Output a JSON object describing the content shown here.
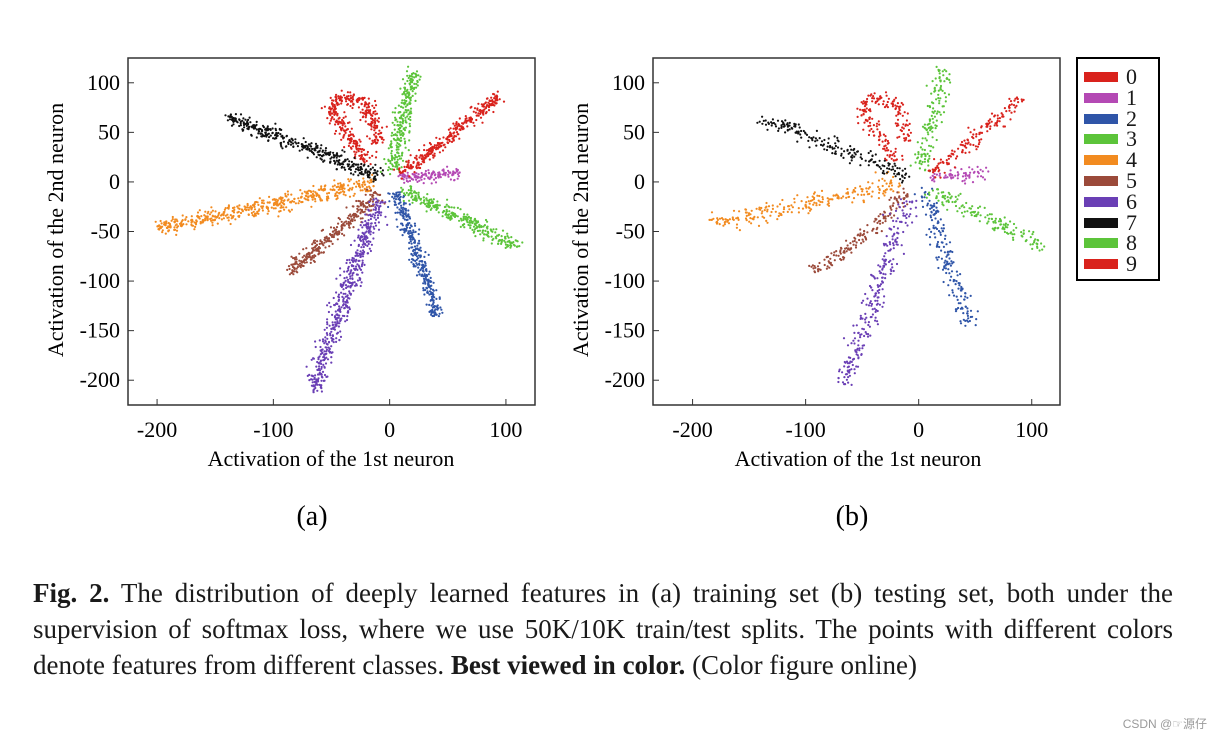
{
  "caption": {
    "fig_label": "Fig. 2.",
    "text_1": " The distribution of deeply learned features in (a) training set (b) testing set, both under the supervision of softmax loss, where we use 50K/10K train/test splits. The points with different colors denote features from different classes. ",
    "bold_text": "Best viewed in color.",
    "text_2": " (Color figure online)"
  },
  "watermark": "CSDN @☞源仔",
  "legend": [
    {
      "label": "0",
      "color": "#d9221c"
    },
    {
      "label": "1",
      "color": "#b449b4"
    },
    {
      "label": "2",
      "color": "#2f55a8"
    },
    {
      "label": "3",
      "color": "#5cc43a"
    },
    {
      "label": "4",
      "color": "#f28b20"
    },
    {
      "label": "5",
      "color": "#9b4a3a"
    },
    {
      "label": "6",
      "color": "#6a3fb5"
    },
    {
      "label": "7",
      "color": "#111111"
    },
    {
      "label": "8",
      "color": "#5cc43a"
    },
    {
      "label": "9",
      "color": "#d9221c"
    }
  ],
  "chart_data": [
    {
      "type": "scatter",
      "panel_label": "(a)",
      "xlabel": "Activation of the 1st neuron",
      "ylabel": "Activation of the 2nd neuron",
      "xlim": [
        -225,
        125
      ],
      "ylim": [
        -225,
        125
      ],
      "xticks": [
        -200,
        -100,
        0,
        100
      ],
      "yticks": [
        100,
        50,
        0,
        -50,
        -100,
        -150,
        -200
      ],
      "series": [
        {
          "name": "0",
          "color": "#d9221c",
          "points": [
            [
              -20,
              20
            ],
            [
              -35,
              45
            ],
            [
              -50,
              70
            ],
            [
              -45,
              85
            ],
            [
              -20,
              80
            ],
            [
              -10,
              40
            ]
          ],
          "center": [
            -35,
            60
          ]
        },
        {
          "name": "1",
          "color": "#b449b4",
          "points": [
            [
              10,
              5
            ],
            [
              30,
              7
            ],
            [
              50,
              8
            ],
            [
              60,
              8
            ]
          ],
          "center": [
            35,
            7
          ]
        },
        {
          "name": "2",
          "color": "#2f55a8",
          "points": [
            [
              5,
              -10
            ],
            [
              15,
              -40
            ],
            [
              25,
              -80
            ],
            [
              35,
              -110
            ],
            [
              40,
              -135
            ]
          ],
          "center": [
            25,
            -75
          ]
        },
        {
          "name": "3",
          "color": "#5cc43a",
          "points": [
            [
              3,
              10
            ],
            [
              8,
              45
            ],
            [
              15,
              80
            ],
            [
              22,
              115
            ]
          ],
          "center": [
            12,
            60
          ]
        },
        {
          "name": "4",
          "color": "#f28b20",
          "points": [
            [
              -15,
              -2
            ],
            [
              -60,
              -12
            ],
            [
              -110,
              -25
            ],
            [
              -160,
              -38
            ],
            [
              -200,
              -45
            ]
          ],
          "center": [
            -100,
            -22
          ]
        },
        {
          "name": "5",
          "color": "#9b4a3a",
          "points": [
            [
              -10,
              -10
            ],
            [
              -30,
              -35
            ],
            [
              -55,
              -60
            ],
            [
              -75,
              -80
            ],
            [
              -90,
              -92
            ]
          ],
          "center": [
            -50,
            -52
          ]
        },
        {
          "name": "6",
          "color": "#6a3fb5",
          "points": [
            [
              -10,
              -20
            ],
            [
              -25,
              -70
            ],
            [
              -40,
              -120
            ],
            [
              -55,
              -170
            ],
            [
              -65,
              -210
            ]
          ],
          "center": [
            -38,
            -115
          ]
        },
        {
          "name": "7",
          "color": "#111111",
          "points": [
            [
              -10,
              5
            ],
            [
              -40,
              20
            ],
            [
              -80,
              38
            ],
            [
              -115,
              55
            ],
            [
              -140,
              65
            ]
          ],
          "center": [
            -75,
            35
          ]
        },
        {
          "name": "8",
          "color": "#5cc43a",
          "points": [
            [
              10,
              -8
            ],
            [
              40,
              -25
            ],
            [
              70,
              -42
            ],
            [
              100,
              -60
            ],
            [
              110,
              -65
            ]
          ],
          "center": [
            60,
            -35
          ]
        },
        {
          "name": "9",
          "color": "#d9221c",
          "points": [
            [
              10,
              8
            ],
            [
              35,
              30
            ],
            [
              60,
              55
            ],
            [
              85,
              78
            ],
            [
              95,
              88
            ]
          ],
          "center": [
            50,
            45
          ]
        }
      ]
    },
    {
      "type": "scatter",
      "panel_label": "(b)",
      "xlabel": "Activation of the 1st neuron",
      "ylabel": "Activation of the 2nd neuron",
      "xlim": [
        -235,
        125
      ],
      "ylim": [
        -225,
        125
      ],
      "xticks": [
        -200,
        -100,
        0,
        100
      ],
      "yticks": [
        100,
        50,
        0,
        -50,
        -100,
        -150,
        -200
      ],
      "series": [
        {
          "name": "0",
          "color": "#d9221c",
          "points": [
            [
              -20,
              20
            ],
            [
              -35,
              45
            ],
            [
              -50,
              70
            ],
            [
              -45,
              85
            ],
            [
              -20,
              80
            ],
            [
              -10,
              40
            ]
          ],
          "center": [
            -35,
            60
          ]
        },
        {
          "name": "1",
          "color": "#b449b4",
          "points": [
            [
              10,
              5
            ],
            [
              30,
              7
            ],
            [
              50,
              8
            ],
            [
              60,
              8
            ]
          ],
          "center": [
            35,
            7
          ]
        },
        {
          "name": "2",
          "color": "#2f55a8",
          "points": [
            [
              5,
              -10
            ],
            [
              15,
              -40
            ],
            [
              25,
              -80
            ],
            [
              35,
              -110
            ],
            [
              45,
              -145
            ]
          ],
          "center": [
            25,
            -75
          ]
        },
        {
          "name": "3",
          "color": "#5cc43a",
          "points": [
            [
              3,
              10
            ],
            [
              8,
              45
            ],
            [
              15,
              80
            ],
            [
              22,
              115
            ]
          ],
          "center": [
            12,
            60
          ]
        },
        {
          "name": "4",
          "color": "#f28b20",
          "points": [
            [
              -15,
              -2
            ],
            [
              -60,
              -12
            ],
            [
              -110,
              -25
            ],
            [
              -160,
              -38
            ],
            [
              -185,
              -42
            ]
          ],
          "center": [
            -95,
            -22
          ]
        },
        {
          "name": "5",
          "color": "#9b4a3a",
          "points": [
            [
              -10,
              -10
            ],
            [
              -30,
              -35
            ],
            [
              -55,
              -60
            ],
            [
              -80,
              -80
            ],
            [
              -95,
              -92
            ]
          ],
          "center": [
            -50,
            -52
          ]
        },
        {
          "name": "6",
          "color": "#6a3fb5",
          "points": [
            [
              -10,
              -20
            ],
            [
              -25,
              -70
            ],
            [
              -40,
              -120
            ],
            [
              -55,
              -170
            ],
            [
              -70,
              -205
            ]
          ],
          "center": [
            -38,
            -115
          ]
        },
        {
          "name": "7",
          "color": "#111111",
          "points": [
            [
              -10,
              5
            ],
            [
              -40,
              20
            ],
            [
              -80,
              38
            ],
            [
              -115,
              55
            ],
            [
              -140,
              62
            ]
          ],
          "center": [
            -75,
            35
          ]
        },
        {
          "name": "8",
          "color": "#5cc43a",
          "points": [
            [
              10,
              -8
            ],
            [
              40,
              -25
            ],
            [
              70,
              -42
            ],
            [
              100,
              -58
            ],
            [
              110,
              -65
            ]
          ],
          "center": [
            60,
            -35
          ]
        },
        {
          "name": "9",
          "color": "#d9221c",
          "points": [
            [
              10,
              8
            ],
            [
              35,
              30
            ],
            [
              60,
              55
            ],
            [
              85,
              78
            ],
            [
              90,
              85
            ]
          ],
          "center": [
            50,
            45
          ]
        }
      ]
    }
  ]
}
